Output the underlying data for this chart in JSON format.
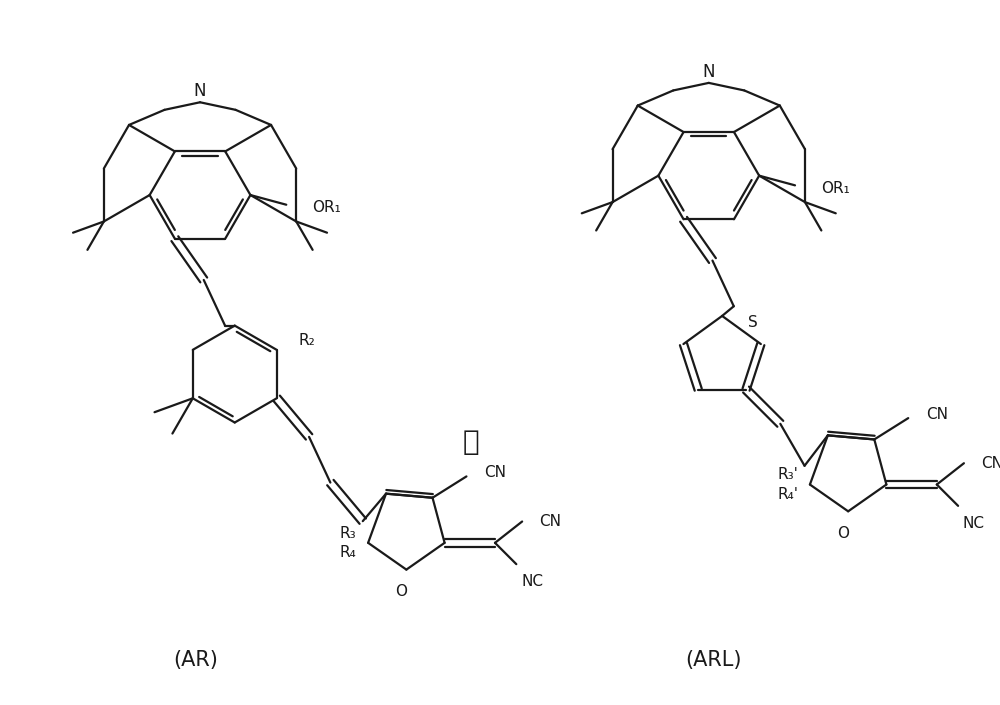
{
  "bg_color": "#ffffff",
  "line_color": "#1a1a1a",
  "line_width": 1.6,
  "font_size_atom": 11,
  "font_size_caption": 15,
  "font_size_or": 20,
  "label_AR": "(AR)",
  "label_ARL": "(ARL)",
  "label_or": "或"
}
